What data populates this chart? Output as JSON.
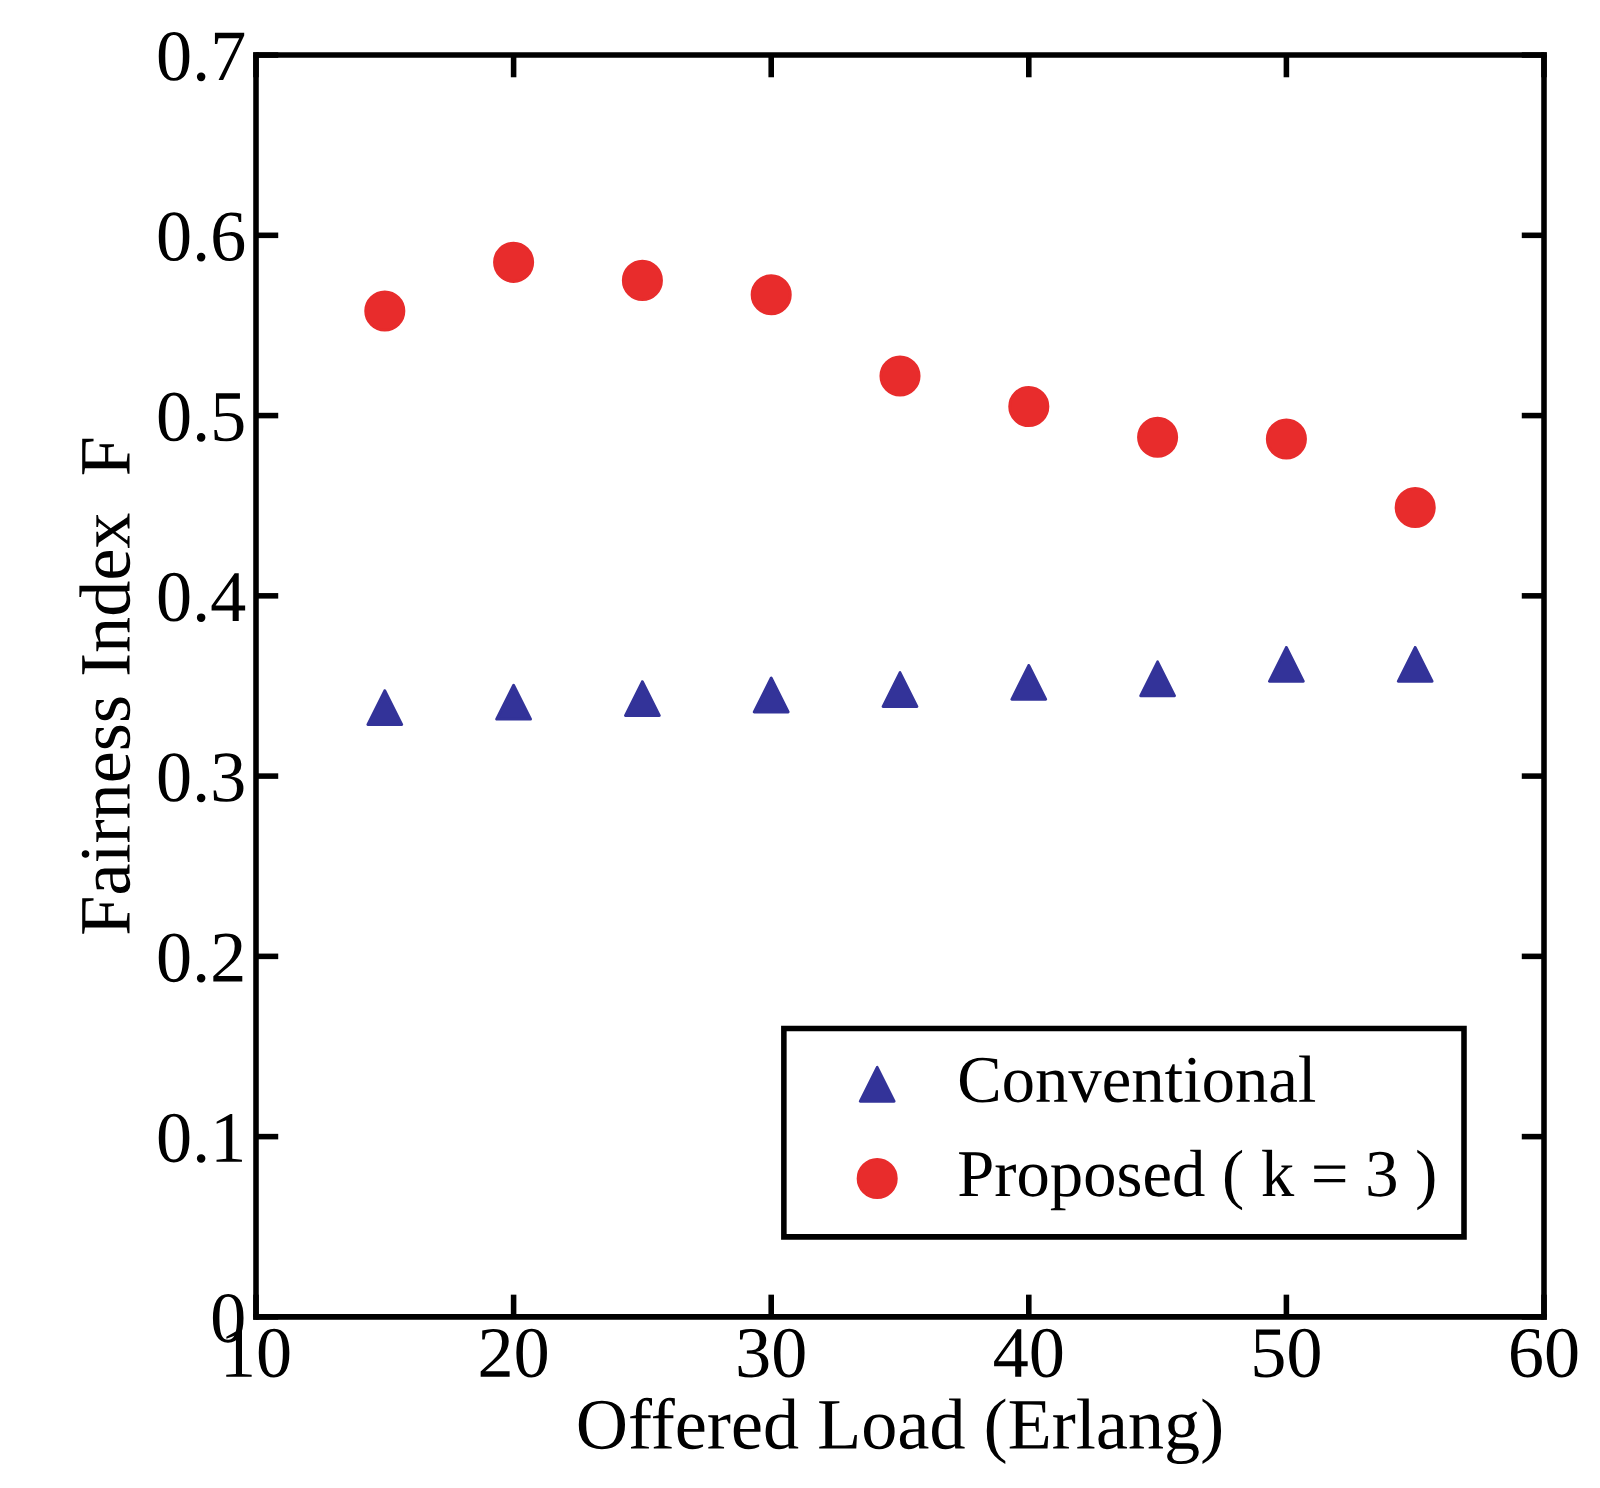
{
  "chart_data": {
    "type": "scatter",
    "xlabel": "Offered Load (Erlang)",
    "ylabel": "Fairness Index  F",
    "x": [
      15,
      20,
      25,
      30,
      35,
      40,
      45,
      50,
      55
    ],
    "series": [
      {
        "name": "Conventional",
        "color": "#333399",
        "marker": "triangle",
        "values": [
          0.338,
          0.341,
          0.343,
          0.345,
          0.348,
          0.352,
          0.354,
          0.362,
          0.362
        ]
      },
      {
        "name": "Proposed ( k = 3 )",
        "color": "#e82c2c",
        "marker": "circle",
        "values": [
          0.558,
          0.585,
          0.575,
          0.567,
          0.522,
          0.505,
          0.488,
          0.487,
          0.449
        ]
      }
    ],
    "xlim": [
      10,
      60
    ],
    "xticks": [
      10,
      20,
      30,
      40,
      50,
      60
    ],
    "ylim": [
      0,
      0.7
    ],
    "yticks": [
      {
        "value": 0,
        "label": "0"
      },
      0.1,
      0.2,
      0.3,
      0.4,
      0.5,
      0.6,
      0.7
    ],
    "grid": false,
    "legend": "bottom right"
  }
}
